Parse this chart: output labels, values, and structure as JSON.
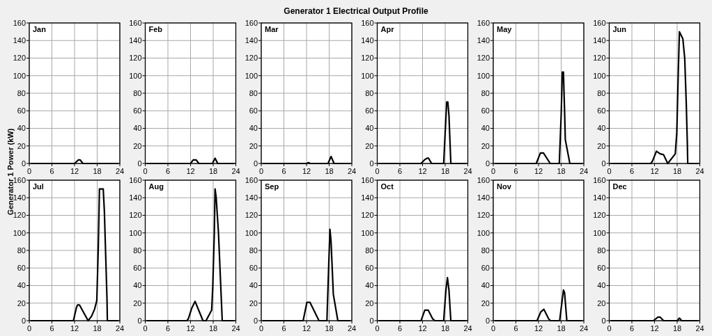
{
  "chart_data": [
    {
      "type": "other",
      "title": "Generator 1 Electrical Output Profile",
      "ylabel": "Generator 1 Power (kW)"
    },
    {
      "type": "line",
      "title": "Jan",
      "xlim": [
        0,
        24
      ],
      "xticks": [
        0,
        6,
        12,
        18,
        24
      ],
      "ylim": [
        0,
        160
      ],
      "yticks": [
        0,
        20,
        40,
        60,
        80,
        100,
        120,
        140,
        160
      ],
      "grid": true,
      "line_style": "solid",
      "series": [
        {
          "color": "#000000",
          "x": [
            0.5,
            12,
            13,
            13.5,
            14.2,
            23.5
          ],
          "values": [
            0,
            0,
            4,
            4,
            0,
            0
          ]
        }
      ]
    },
    {
      "type": "line",
      "title": "Feb",
      "xlim": [
        0,
        24
      ],
      "xticks": [
        0,
        6,
        12,
        18,
        24
      ],
      "ylim": [
        0,
        160
      ],
      "yticks": [
        0,
        20,
        40,
        60,
        80,
        100,
        120,
        140,
        160
      ],
      "grid": true,
      "line_style": "solid",
      "series": [
        {
          "color": "#000000",
          "x": [
            0.5,
            12,
            12.7,
            13.5,
            14.2,
            17.8,
            18.5,
            19.2,
            23.5
          ],
          "values": [
            0,
            0,
            4,
            4,
            0,
            0,
            6,
            0,
            0
          ]
        }
      ]
    },
    {
      "type": "line",
      "title": "Mar",
      "xlim": [
        0,
        24
      ],
      "xticks": [
        0,
        6,
        12,
        18,
        24
      ],
      "ylim": [
        0,
        160
      ],
      "yticks": [
        0,
        20,
        40,
        60,
        80,
        100,
        120,
        140,
        160
      ],
      "grid": true,
      "line_style": "solid",
      "series": [
        {
          "color": "#000000",
          "x": [
            0.5,
            12,
            12.5,
            13,
            17.7,
            18.5,
            19.3,
            23.5
          ],
          "values": [
            0,
            0,
            1,
            0,
            0,
            8,
            0,
            0
          ]
        }
      ]
    },
    {
      "type": "line",
      "title": "Apr",
      "xlim": [
        0,
        24
      ],
      "xticks": [
        0,
        6,
        12,
        18,
        24
      ],
      "ylim": [
        0,
        160
      ],
      "yticks": [
        0,
        20,
        40,
        60,
        80,
        100,
        120,
        140,
        160
      ],
      "grid": true,
      "line_style": "solid",
      "series": [
        {
          "color": "#000000",
          "x": [
            0.5,
            11.6,
            12.5,
            13.2,
            13.6,
            14.4,
            17.6,
            18,
            18.4,
            18.7,
            19,
            19.5,
            23.5
          ],
          "values": [
            0,
            0,
            4,
            6,
            6,
            0,
            0,
            35,
            70,
            70,
            55,
            0,
            0
          ]
        }
      ]
    },
    {
      "type": "line",
      "title": "May",
      "xlim": [
        0,
        24
      ],
      "xticks": [
        0,
        6,
        12,
        18,
        24
      ],
      "ylim": [
        0,
        160
      ],
      "yticks": [
        0,
        20,
        40,
        60,
        80,
        100,
        120,
        140,
        160
      ],
      "grid": true,
      "line_style": "solid",
      "series": [
        {
          "color": "#000000",
          "x": [
            0.5,
            11.4,
            12.5,
            13.3,
            15.1,
            17.5,
            18,
            18.3,
            18.6,
            18.9,
            19.1,
            20.3,
            23.5
          ],
          "values": [
            0,
            0,
            12,
            12,
            0,
            0,
            55,
            104,
            104,
            60,
            27,
            0,
            0
          ]
        }
      ]
    },
    {
      "type": "line",
      "title": "Jun",
      "xlim": [
        0,
        24
      ],
      "xticks": [
        0,
        6,
        12,
        18,
        24
      ],
      "ylim": [
        0,
        160
      ],
      "yticks": [
        0,
        20,
        40,
        60,
        80,
        100,
        120,
        140,
        160
      ],
      "grid": true,
      "line_style": "solid",
      "series": [
        {
          "color": "#000000",
          "x": [
            0.5,
            11,
            11.5,
            12.5,
            13.5,
            14.4,
            15.5,
            17.5,
            17.9,
            18.3,
            18.6,
            19.5,
            20,
            20.4,
            20.7,
            20.8,
            23.5
          ],
          "values": [
            0,
            0,
            3,
            14,
            11,
            10,
            0,
            11,
            35,
            105,
            150,
            142,
            120,
            70,
            22,
            0,
            0
          ]
        }
      ]
    },
    {
      "type": "line",
      "title": "Jul",
      "xlim": [
        0,
        24
      ],
      "xticks": [
        0,
        6,
        12,
        18,
        24
      ],
      "ylim": [
        0,
        160
      ],
      "yticks": [
        0,
        20,
        40,
        60,
        80,
        100,
        120,
        140,
        160
      ],
      "grid": true,
      "line_style": "solid",
      "series": [
        {
          "color": "#000000",
          "x": [
            0.5,
            11.7,
            12.5,
            12.8,
            13.3,
            15.6,
            16.5,
            17.3,
            17.9,
            18.3,
            18.6,
            19.6,
            19.9,
            20.6,
            20.7,
            23.5
          ],
          "values": [
            0,
            0,
            15,
            18,
            18,
            0,
            5,
            13,
            23,
            85,
            150,
            150,
            125,
            25,
            0,
            0
          ]
        }
      ]
    },
    {
      "type": "line",
      "title": "Aug",
      "xlim": [
        0,
        24
      ],
      "xticks": [
        0,
        6,
        12,
        18,
        24
      ],
      "ylim": [
        0,
        160
      ],
      "yticks": [
        0,
        20,
        40,
        60,
        80,
        100,
        120,
        140,
        160
      ],
      "grid": true,
      "line_style": "solid",
      "series": [
        {
          "color": "#000000",
          "x": [
            0.5,
            11,
            11.4,
            12.3,
            13.2,
            15.3,
            16.1,
            17.6,
            17.9,
            18.3,
            18.5,
            18.8,
            19.4,
            20.1,
            20.4,
            23.5
          ],
          "values": [
            0,
            0,
            2,
            14,
            22,
            0,
            0,
            12,
            40,
            100,
            150,
            140,
            100,
            30,
            0,
            0
          ]
        }
      ]
    },
    {
      "type": "line",
      "title": "Sep",
      "xlim": [
        0,
        24
      ],
      "xticks": [
        0,
        6,
        12,
        18,
        24
      ],
      "ylim": [
        0,
        160
      ],
      "yticks": [
        0,
        20,
        40,
        60,
        80,
        100,
        120,
        140,
        160
      ],
      "grid": true,
      "line_style": "solid",
      "series": [
        {
          "color": "#000000",
          "x": [
            0.5,
            11.1,
            12.1,
            12.9,
            15.3,
            17.4,
            17.7,
            18.2,
            18.5,
            19.1,
            20.3,
            23.5
          ],
          "values": [
            0,
            0,
            21,
            21,
            0,
            0,
            40,
            104,
            90,
            30,
            0,
            0
          ]
        }
      ]
    },
    {
      "type": "line",
      "title": "Oct",
      "xlim": [
        0,
        24
      ],
      "xticks": [
        0,
        6,
        12,
        18,
        24
      ],
      "ylim": [
        0,
        160
      ],
      "yticks": [
        0,
        20,
        40,
        60,
        80,
        100,
        120,
        140,
        160
      ],
      "grid": true,
      "line_style": "solid",
      "series": [
        {
          "color": "#000000",
          "x": [
            0.5,
            11.6,
            12.6,
            13.5,
            14.7,
            15.3,
            17.6,
            18.2,
            18.6,
            19,
            19.5,
            23.5
          ],
          "values": [
            0,
            0,
            12,
            12,
            2,
            0,
            0,
            35,
            49,
            35,
            0,
            0
          ]
        }
      ]
    },
    {
      "type": "line",
      "title": "Nov",
      "xlim": [
        0,
        24
      ],
      "xticks": [
        0,
        6,
        12,
        18,
        24
      ],
      "ylim": [
        0,
        160
      ],
      "yticks": [
        0,
        20,
        40,
        60,
        80,
        100,
        120,
        140,
        160
      ],
      "grid": true,
      "line_style": "solid",
      "series": [
        {
          "color": "#000000",
          "x": [
            0.5,
            11.6,
            12.6,
            13.4,
            14.7,
            15.2,
            17.6,
            18.6,
            18.9,
            19.5,
            23.5
          ],
          "values": [
            0,
            0,
            10,
            13,
            2,
            0,
            0,
            35,
            32,
            0,
            0
          ]
        }
      ]
    },
    {
      "type": "line",
      "title": "Dec",
      "xlim": [
        0,
        24
      ],
      "xticks": [
        0,
        6,
        12,
        18,
        24
      ],
      "ylim": [
        0,
        160
      ],
      "yticks": [
        0,
        20,
        40,
        60,
        80,
        100,
        120,
        140,
        160
      ],
      "grid": true,
      "line_style": "solid",
      "series": [
        {
          "color": "#000000",
          "x": [
            0.5,
            11.7,
            12.9,
            13.5,
            14.4,
            18,
            18.6,
            19.2,
            23.5
          ],
          "values": [
            0,
            0,
            4,
            4,
            0,
            0,
            3,
            0,
            0
          ]
        }
      ]
    }
  ]
}
